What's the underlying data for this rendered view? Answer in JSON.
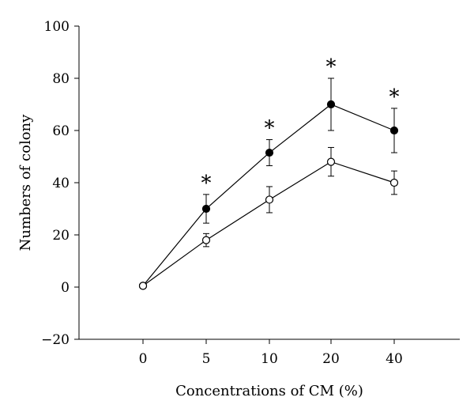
{
  "chart_data": {
    "type": "line",
    "title": "",
    "xlabel": "Concentrations of CM (%)",
    "ylabel": "Numbers of colony",
    "categories": [
      "0",
      "5",
      "10",
      "20",
      "40"
    ],
    "ylim": [
      -20,
      100
    ],
    "yticks": [
      "-20",
      "0",
      "20",
      "40",
      "60",
      "80",
      "100"
    ],
    "grid": false,
    "legend": "none",
    "series": [
      {
        "marker": "filled-circle",
        "color": "#000000",
        "values": [
          0.5,
          30,
          51.5,
          70,
          60
        ],
        "error": [
          0,
          5.5,
          5,
          10,
          8.5
        ],
        "annotations": [
          "",
          "*",
          "*",
          "*",
          "*"
        ]
      },
      {
        "marker": "open-circle",
        "color": "#000000",
        "values": [
          0.5,
          18,
          33.5,
          48,
          40
        ],
        "error": [
          0,
          2.5,
          5,
          5.5,
          4.5
        ],
        "annotations": [
          "",
          "",
          "",
          "",
          ""
        ]
      }
    ]
  }
}
